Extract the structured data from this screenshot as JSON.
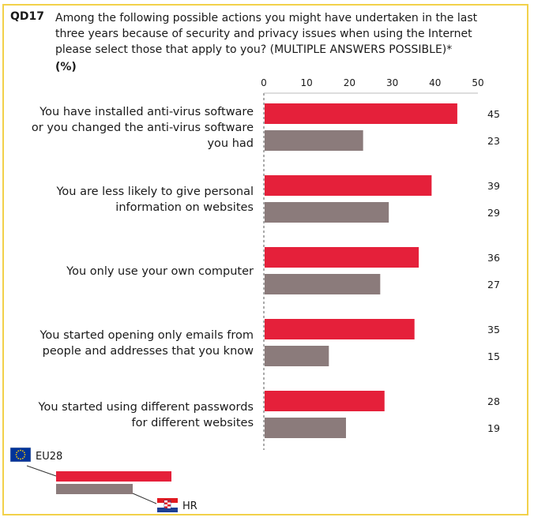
{
  "header": {
    "question_id": "QD17",
    "question": "Among the following possible actions you might have undertaken in the last three years because of security and privacy issues when using the Internet please select those that apply to you? (MULTIPLE ANSWERS POSSIBLE)*",
    "unit": "(%)"
  },
  "colors": {
    "eu28": "#e5203a",
    "hr": "#8b7b7b",
    "frame": "#f2d14a",
    "axis": "#555555"
  },
  "legend": {
    "eu_label": "EU28",
    "hr_label": "HR",
    "eu_icon": "eu-flag-icon",
    "hr_icon": "croatia-flag-icon"
  },
  "chart_data": {
    "type": "bar",
    "orientation": "horizontal",
    "categories": [
      [
        "You have installed anti-virus software",
        "or you changed the anti-virus software",
        "you had"
      ],
      [
        "You are less likely to give personal",
        "information on websites"
      ],
      [
        "You only use your own computer"
      ],
      [
        "You started opening only emails from",
        "people and addresses that you know"
      ],
      [
        "You started using different passwords",
        "for different websites"
      ]
    ],
    "series": [
      {
        "name": "EU28",
        "values": [
          45,
          39,
          36,
          35,
          28
        ]
      },
      {
        "name": "HR",
        "values": [
          23,
          29,
          27,
          15,
          19
        ]
      }
    ],
    "xlim": [
      0,
      50
    ],
    "xticks": [
      0,
      10,
      20,
      30,
      40,
      50
    ],
    "grid": false,
    "legend_position": "bottom-left"
  }
}
